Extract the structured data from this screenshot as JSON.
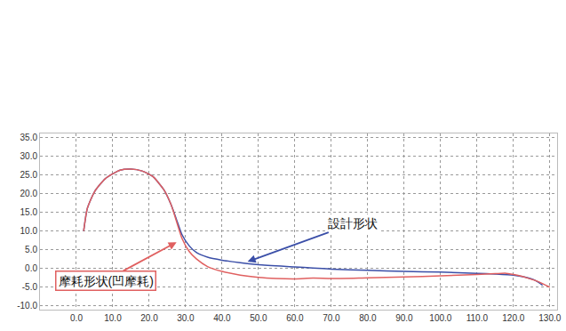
{
  "chart_data": {
    "type": "line",
    "grid": true,
    "xlim": [
      -10,
      132
    ],
    "ylim": [
      -11,
      36
    ],
    "xticks": [
      {
        "value": 0,
        "label": "0.0"
      },
      {
        "value": 10,
        "label": "10.0"
      },
      {
        "value": 20,
        "label": "20.0"
      },
      {
        "value": 30,
        "label": "30.0"
      },
      {
        "value": 40,
        "label": "40.0"
      },
      {
        "value": 50,
        "label": "50.0"
      },
      {
        "value": 60,
        "label": "60.0"
      },
      {
        "value": 70,
        "label": "70.0"
      },
      {
        "value": 80,
        "label": "80.0"
      },
      {
        "value": 90,
        "label": "90.0"
      },
      {
        "value": 100,
        "label": "100.0"
      },
      {
        "value": 110,
        "label": "110.0"
      },
      {
        "value": 120,
        "label": "120.0"
      },
      {
        "value": 130,
        "label": "130.0"
      }
    ],
    "yticks": [
      {
        "value": -10,
        "label": "-10.0"
      },
      {
        "value": -5,
        "label": "-5.0"
      },
      {
        "value": 0,
        "label": "0.0"
      },
      {
        "value": 5,
        "label": "5.0"
      },
      {
        "value": 10,
        "label": "10.0"
      },
      {
        "value": 15,
        "label": "15.0"
      },
      {
        "value": 20,
        "label": "20.0"
      },
      {
        "value": 25,
        "label": "25.0"
      },
      {
        "value": 30,
        "label": "30.0"
      },
      {
        "value": 35,
        "label": "35.0"
      }
    ],
    "series": [
      {
        "name": "設計形状",
        "color": "#3b4fa8",
        "x": [
          2,
          3,
          5,
          8,
          12,
          15,
          18,
          21,
          24,
          26,
          27.5,
          29,
          31,
          33,
          36,
          40,
          45,
          50,
          60,
          65,
          70,
          80,
          90,
          100,
          110,
          115,
          120,
          123,
          126,
          128
        ],
        "values": [
          10,
          16,
          20.5,
          24,
          26.2,
          26.5,
          26,
          24.5,
          21,
          17,
          13,
          9,
          6,
          4.2,
          3,
          2.2,
          1.5,
          1,
          0.4,
          0.1,
          -0.2,
          -0.5,
          -0.8,
          -1,
          -1.3,
          -1.5,
          -1.8,
          -2.3,
          -3.2,
          -4.5
        ]
      },
      {
        "name": "摩耗形状(凹摩耗)",
        "color": "#e06060",
        "x": [
          2,
          3,
          5,
          8,
          12,
          15,
          18,
          21,
          24,
          26,
          27.5,
          29,
          31,
          33,
          36,
          40,
          45,
          50,
          55,
          60,
          65,
          70,
          80,
          90,
          100,
          110,
          115,
          118,
          121,
          124,
          127,
          130
        ],
        "values": [
          10,
          16,
          20.5,
          24,
          26.2,
          26.5,
          26,
          24.5,
          21,
          17,
          12.5,
          8,
          4.5,
          2.5,
          0.5,
          -0.8,
          -1.8,
          -2.4,
          -2.7,
          -2.8,
          -2.6,
          -2.7,
          -2.5,
          -2.3,
          -2,
          -1.6,
          -1.4,
          -1.3,
          -1.8,
          -2.6,
          -3.6,
          -5
        ]
      }
    ]
  }
}
